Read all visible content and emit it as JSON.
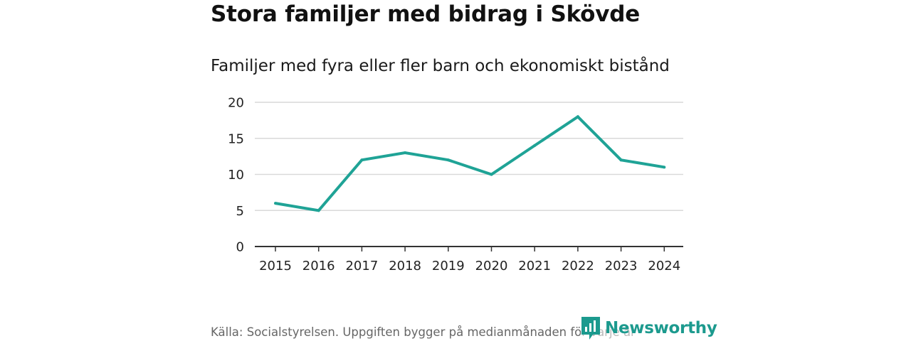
{
  "title": "Stora familjer med bidrag i Skövde",
  "subtitle": "Familjer med fyra eller fler barn och ekonomiskt bistånd",
  "source": "Källa: Socialstyrelsen. Uppgiften bygger på medianmånaden för varje år",
  "brand": {
    "name": "Newsworthy",
    "icon": "newsworthy-logo-icon",
    "color": "#1c9a8e"
  },
  "colors": {
    "line": "#1fa396",
    "grid": "#d9d9d9",
    "axis": "#333333"
  },
  "chart_data": {
    "type": "line",
    "title": "Stora familjer med bidrag i Skövde",
    "subtitle": "Familjer med fyra eller fler barn och ekonomiskt bistånd",
    "xlabel": "",
    "ylabel": "",
    "x": [
      "2015",
      "2016",
      "2017",
      "2018",
      "2019",
      "2020",
      "2021",
      "2022",
      "2023",
      "2024"
    ],
    "series": [
      {
        "name": "Familjer med fyra eller fler barn och ekonomiskt bistånd",
        "values": [
          6,
          5,
          12,
          13,
          12,
          10,
          14,
          18,
          12,
          11
        ]
      }
    ],
    "ylim": [
      0,
      20
    ],
    "yticks": [
      0,
      5,
      10,
      15,
      20
    ],
    "grid": true,
    "legend": "none"
  }
}
